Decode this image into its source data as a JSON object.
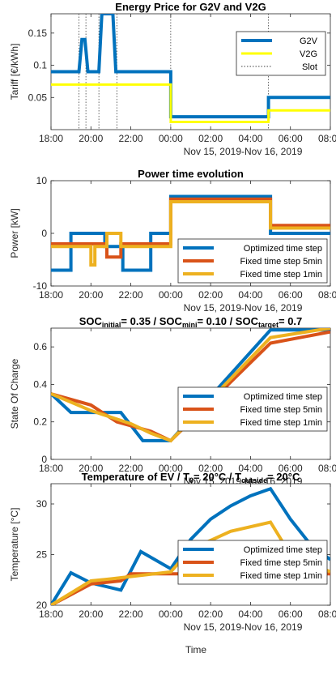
{
  "colors": {
    "blue": "#0072BD",
    "orange": "#D95319",
    "yellow": "#FFFF00",
    "amber": "#EDB120",
    "axis": "#262626",
    "grid": "#262626"
  },
  "x_ticks": [
    "18:00",
    "20:00",
    "22:00",
    "00:00",
    "02:00",
    "04:00",
    "06:00",
    "08:00"
  ],
  "date_range_label": "Nov 15, 2019-Nov 16, 2019",
  "time_label": "Time",
  "chart_data": [
    {
      "type": "line",
      "title": "Energy Price for G2V and V2G",
      "ylabel": "Tariff [€/kWh]",
      "y_ticks": [
        "0.05",
        "0.1",
        "0.15"
      ],
      "ylim": [
        0,
        0.18
      ],
      "xlim": [
        18,
        32
      ],
      "legend": {
        "position": "top-right",
        "entries": [
          "G2V",
          "V2G",
          "Slot"
        ]
      },
      "series": [
        {
          "name": "G2V",
          "x": [
            18,
            19.4,
            19.55,
            19.7,
            19.85,
            20.4,
            20.55,
            21.1,
            21.25,
            24,
            24,
            28.9,
            28.9,
            32
          ],
          "y": [
            0.09,
            0.09,
            0.14,
            0.14,
            0.09,
            0.09,
            0.18,
            0.18,
            0.09,
            0.09,
            0.02,
            0.02,
            0.05,
            0.05
          ]
        },
        {
          "name": "V2G",
          "x": [
            18,
            24,
            24,
            28.9,
            28.9,
            32
          ],
          "y": [
            0.07,
            0.07,
            0.012,
            0.012,
            0.03,
            0.03
          ]
        }
      ],
      "slots": [
        19.4,
        19.75,
        20.4,
        21.3,
        24,
        28.9
      ]
    },
    {
      "type": "line",
      "title": "Power time evolution",
      "ylabel": "Power [kW]",
      "y_ticks": [
        "-10",
        "0",
        "10"
      ],
      "ylim": [
        -10,
        10
      ],
      "xlim": [
        18,
        32
      ],
      "legend": {
        "position": "bottom-right",
        "entries": [
          "Optimized time step",
          "Fixed time step 5min",
          "Fixed time step 1min"
        ]
      },
      "series": [
        {
          "name": "Optimized time step",
          "x": [
            18,
            19,
            19,
            20.7,
            20.7,
            21.6,
            21.6,
            23,
            23,
            24,
            24,
            29,
            29,
            32
          ],
          "y": [
            -7,
            -7,
            0,
            0,
            -2.5,
            -2.5,
            -7,
            -7,
            0,
            0,
            7,
            7,
            0,
            0
          ]
        },
        {
          "name": "Fixed time step 5min",
          "x": [
            18,
            20.8,
            20.8,
            21.5,
            21.5,
            24,
            24,
            29,
            29,
            32
          ],
          "y": [
            -2,
            -2,
            -4.5,
            -4.5,
            -2,
            -2,
            6.5,
            6.5,
            1.5,
            1.5
          ]
        },
        {
          "name": "Fixed time step 1min",
          "x": [
            18,
            20,
            20,
            20.2,
            20.2,
            20.8,
            20.8,
            21.5,
            21.5,
            24,
            24,
            29,
            29,
            32
          ],
          "y": [
            -2.5,
            -2.5,
            -6,
            -6,
            -2.5,
            -2.5,
            0,
            0,
            -2.5,
            -2.5,
            6,
            6,
            1,
            1
          ]
        }
      ]
    },
    {
      "type": "line",
      "title": "SOC_initial = 0.35 / SOC_mini = 0.10 / SOC_target = 0.7",
      "title_parts": [
        {
          "text": "SOC",
          "sub": false
        },
        {
          "text": "initial",
          "sub": true
        },
        {
          "text": "= 0.35 / SOC",
          "sub": false
        },
        {
          "text": "mini",
          "sub": true
        },
        {
          "text": "= 0.10 / SOC",
          "sub": false
        },
        {
          "text": "target",
          "sub": true
        },
        {
          "text": "= 0.7",
          "sub": false
        }
      ],
      "ylabel": "State Of Charge",
      "y_ticks": [
        "0",
        "0.2",
        "0.4",
        "0.6"
      ],
      "ylim": [
        0,
        0.7
      ],
      "xlim": [
        18,
        32
      ],
      "legend": {
        "position": "right",
        "entries": [
          "Optimized time step",
          "Fixed time step 5min",
          "Fixed time step 1min"
        ]
      },
      "series": [
        {
          "name": "Optimized time step",
          "x": [
            18,
            19,
            21.5,
            22.6,
            24,
            29,
            32
          ],
          "y": [
            0.35,
            0.25,
            0.25,
            0.1,
            0.1,
            0.69,
            0.69
          ]
        },
        {
          "name": "Fixed time step 5min",
          "x": [
            18,
            20,
            21.3,
            23,
            24,
            29,
            32
          ],
          "y": [
            0.35,
            0.29,
            0.2,
            0.15,
            0.1,
            0.62,
            0.68
          ]
        },
        {
          "name": "Fixed time step 1min",
          "x": [
            18,
            20,
            22,
            23,
            24,
            29,
            32
          ],
          "y": [
            0.35,
            0.26,
            0.19,
            0.14,
            0.1,
            0.65,
            0.7
          ]
        }
      ]
    },
    {
      "type": "line",
      "title": "Temperature of EV / T_0= 20°C / T_outside= 20°C",
      "title_parts": [
        {
          "text": "Temperature of EV / T",
          "sub": false
        },
        {
          "text": "0",
          "sub": true
        },
        {
          "text": "= 20°C / T",
          "sub": false
        },
        {
          "text": "outside",
          "sub": true
        },
        {
          "text": "= 20°C",
          "sub": false
        }
      ],
      "ylabel": "Temperature [°C]",
      "y_ticks": [
        "20",
        "25",
        "30"
      ],
      "ylim": [
        20,
        32
      ],
      "xlim": [
        18,
        32
      ],
      "legend": {
        "position": "bottom-right",
        "entries": [
          "Optimized time step",
          "Fixed time step 5min",
          "Fixed time step 1min"
        ]
      },
      "series": [
        {
          "name": "Optimized time step",
          "x": [
            18,
            19,
            20,
            21.5,
            22.5,
            24,
            25,
            26,
            27,
            28,
            29,
            30,
            31,
            32
          ],
          "y": [
            20,
            23.2,
            22.2,
            21.5,
            25.3,
            23.6,
            26.5,
            28.5,
            29.8,
            30.8,
            31.5,
            28.5,
            26,
            24.5
          ]
        },
        {
          "name": "Fixed time step 5min",
          "x": [
            18,
            20,
            21.5,
            22,
            24,
            32
          ],
          "y": [
            20,
            22.1,
            22.4,
            23.1,
            23.1,
            23.1
          ]
        },
        {
          "name": "Fixed time step 1min",
          "x": [
            18,
            20,
            21,
            24,
            25,
            27,
            29,
            30,
            32
          ],
          "y": [
            20,
            22.4,
            22.6,
            23.3,
            25.5,
            27.3,
            28.2,
            25,
            23.3
          ]
        }
      ]
    }
  ]
}
